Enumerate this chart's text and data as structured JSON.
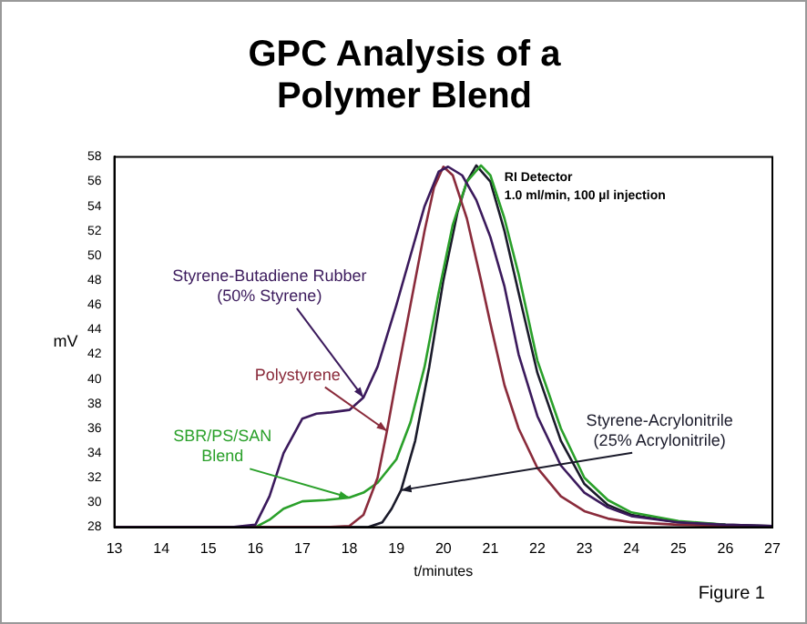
{
  "chart_data": {
    "type": "line",
    "title": "GPC Analysis of a Polymer Blend",
    "xlabel": "t/minutes",
    "ylabel": "mV",
    "xlim": [
      13,
      27
    ],
    "xticks": [
      13,
      14,
      15,
      16,
      17,
      18,
      19,
      20,
      21,
      22,
      23,
      24,
      25,
      26,
      27
    ],
    "ylim": [
      28,
      58
    ],
    "yticks": [
      28,
      30,
      32,
      34,
      36,
      38,
      40,
      42,
      44,
      46,
      48,
      50,
      52,
      54,
      56,
      58
    ],
    "grid": false,
    "legend": false,
    "marker": "none",
    "line_style": "solid",
    "annotations": [
      "RI Detector",
      "1.0 ml/min, 100 µl injection",
      "Figure 1"
    ],
    "series": [
      {
        "name": "Styrene-Butadiene Rubber (50% Styrene)",
        "color": "#3b1a5c",
        "x": [
          13,
          15.5,
          16,
          16.3,
          16.6,
          17,
          17.3,
          17.6,
          18,
          18.3,
          18.6,
          19,
          19.3,
          19.6,
          19.9,
          20.1,
          20.4,
          20.7,
          21,
          21.3,
          21.6,
          22,
          22.5,
          23,
          23.5,
          24,
          25,
          26,
          27
        ],
        "values": [
          28,
          28,
          28.2,
          30.5,
          34,
          36.8,
          37.2,
          37.3,
          37.5,
          38.5,
          41,
          46,
          50,
          54,
          56.8,
          57.2,
          56.5,
          54.5,
          51.5,
          47.5,
          42,
          37,
          33,
          30.8,
          29.6,
          28.9,
          28.4,
          28.2,
          28.1
        ]
      },
      {
        "name": "Polystyrene",
        "color": "#8a2b3b",
        "x": [
          13,
          17.5,
          18,
          18.3,
          18.6,
          18.8,
          19,
          19.3,
          19.6,
          19.8,
          20,
          20.2,
          20.5,
          20.8,
          21,
          21.3,
          21.6,
          22,
          22.5,
          23,
          23.5,
          24,
          25,
          26,
          27
        ],
        "values": [
          28,
          28,
          28.1,
          29,
          32,
          35.8,
          40,
          46,
          52,
          55.5,
          57.2,
          56.5,
          53,
          48,
          44.5,
          39.5,
          36,
          32.8,
          30.5,
          29.3,
          28.7,
          28.4,
          28.2,
          28.1,
          28
        ]
      },
      {
        "name": "SBR/PS/SAN Blend",
        "color": "#2aa02a",
        "x": [
          13,
          16,
          16.3,
          16.6,
          17,
          17.5,
          18,
          18.3,
          18.6,
          19,
          19.3,
          19.6,
          19.9,
          20.2,
          20.5,
          20.8,
          21,
          21.3,
          21.6,
          22,
          22.5,
          23,
          23.5,
          24,
          25,
          26
        ],
        "values": [
          28,
          28,
          28.6,
          29.5,
          30.1,
          30.2,
          30.4,
          30.8,
          31.6,
          33.5,
          36.5,
          41,
          47,
          52.5,
          56,
          57.3,
          56.5,
          53,
          48.5,
          41.5,
          36,
          32,
          30.2,
          29.2,
          28.5,
          28.2
        ]
      },
      {
        "name": "Styrene-Acrylonitrile (25% Acrylonitrile)",
        "color": "#1a1a2a",
        "x": [
          13,
          18.4,
          18.7,
          18.9,
          19.1,
          19.4,
          19.7,
          20,
          20.3,
          20.5,
          20.7,
          21,
          21.3,
          21.6,
          22,
          22.5,
          23,
          23.5,
          24,
          25,
          26,
          27
        ],
        "values": [
          28,
          28,
          28.4,
          29.5,
          31,
          35,
          41,
          48,
          53.5,
          56,
          57.3,
          56,
          52,
          47,
          40.5,
          35,
          31.5,
          29.8,
          29,
          28.4,
          28.2,
          28.1
        ]
      }
    ]
  }
}
